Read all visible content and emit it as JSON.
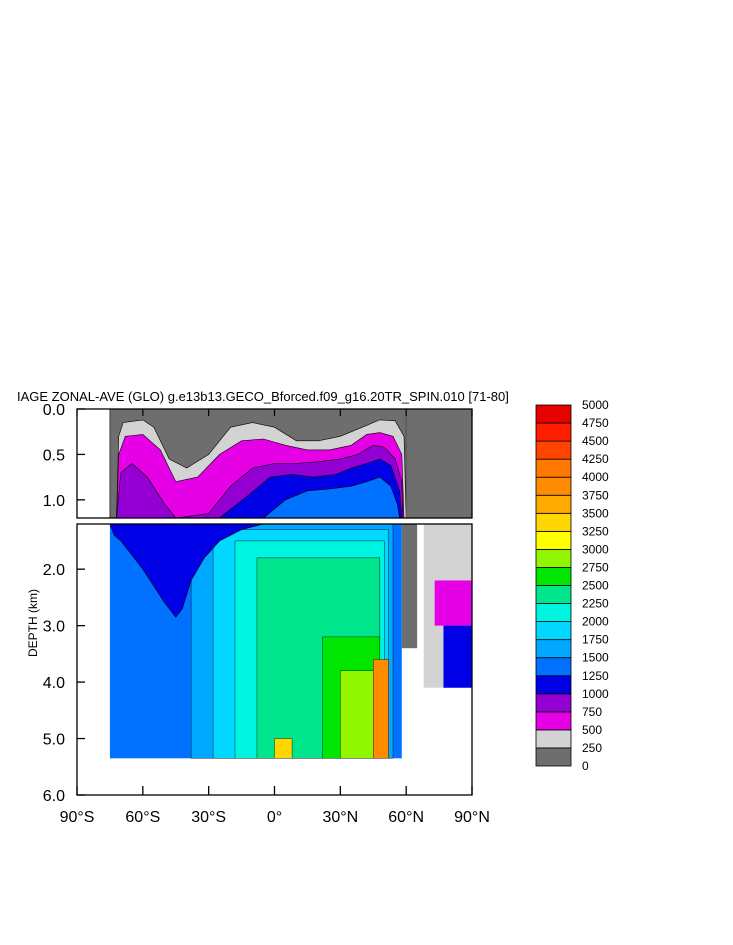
{
  "chart_data": {
    "type": "heatmap",
    "title": "IAGE ZONAL-AVE (GLO) g.e13b13.GECO_Bforced.f09_g16.20TR_SPIN.010 [71-80]",
    "xlabel": "",
    "ylabel": "DEPTH (km)",
    "x_ticks": [
      "90°S",
      "60°S",
      "30°S",
      "0°",
      "30°N",
      "60°N",
      "90°N"
    ],
    "x_tick_values": [
      -90,
      -60,
      -30,
      0,
      30,
      60,
      90
    ],
    "xlim": [
      -90,
      90
    ],
    "upper_panel": {
      "ylim": [
        0,
        1.2
      ],
      "y_ticks": [
        "0.0",
        "0.5",
        "1.0"
      ],
      "y_tick_values": [
        0,
        0.5,
        1.0
      ]
    },
    "lower_panel": {
      "ylim": [
        1.2,
        6.0
      ],
      "y_ticks": [
        "2.0",
        "3.0",
        "4.0",
        "5.0",
        "6.0"
      ],
      "y_tick_values": [
        2,
        3,
        4,
        5,
        6
      ]
    },
    "colorbar": {
      "levels": [
        0,
        250,
        500,
        750,
        1000,
        1250,
        1500,
        1750,
        2000,
        2250,
        2500,
        2750,
        3000,
        3250,
        3500,
        3750,
        4000,
        4250,
        4500,
        4750,
        5000
      ],
      "labels": [
        "0",
        "250",
        "500",
        "750",
        "1000",
        "1250",
        "1500",
        "1750",
        "2000",
        "2250",
        "2500",
        "2750",
        "3000",
        "3250",
        "3500",
        "3750",
        "4000",
        "4250",
        "4500",
        "4750",
        "5000"
      ],
      "colors": [
        "#6e6e6e",
        "#d3d3d3",
        "#e600e6",
        "#9400d3",
        "#0000e6",
        "#0072ff",
        "#00a8ff",
        "#00d8ff",
        "#00f5e1",
        "#00e68c",
        "#00e600",
        "#91f700",
        "#ffff00",
        "#ffd700",
        "#ffaa00",
        "#ff8c00",
        "#ff7800",
        "#ff4400",
        "#ff1e00",
        "#e60000"
      ]
    },
    "zonal_age_sections": [
      {
        "name": "surface_mask",
        "value": 0,
        "points": [
          [
            -75,
            0
          ],
          [
            -75,
            1.2
          ],
          [
            60,
            1.2
          ],
          [
            60,
            0
          ]
        ]
      },
      {
        "value": 250,
        "points": [
          [
            -72,
            1.2
          ],
          [
            -71,
            0.3
          ],
          [
            -69,
            0.15
          ],
          [
            -60,
            0.12
          ],
          [
            -55,
            0.2
          ],
          [
            -48,
            0.55
          ],
          [
            -40,
            0.65
          ],
          [
            -30,
            0.5
          ],
          [
            -20,
            0.2
          ],
          [
            -10,
            0.15
          ],
          [
            0,
            0.2
          ],
          [
            10,
            0.35
          ],
          [
            20,
            0.35
          ],
          [
            30,
            0.3
          ],
          [
            40,
            0.2
          ],
          [
            48,
            0.12
          ],
          [
            55,
            0.13
          ],
          [
            59,
            0.3
          ],
          [
            60,
            1.2
          ]
        ]
      },
      {
        "value": 500,
        "points": [
          [
            -72,
            1.2
          ],
          [
            -71,
            0.5
          ],
          [
            -68,
            0.3
          ],
          [
            -60,
            0.28
          ],
          [
            -52,
            0.45
          ],
          [
            -45,
            0.8
          ],
          [
            -35,
            0.75
          ],
          [
            -25,
            0.5
          ],
          [
            -15,
            0.35
          ],
          [
            -5,
            0.33
          ],
          [
            5,
            0.4
          ],
          [
            15,
            0.45
          ],
          [
            25,
            0.45
          ],
          [
            35,
            0.4
          ],
          [
            42,
            0.28
          ],
          [
            48,
            0.26
          ],
          [
            54,
            0.3
          ],
          [
            58,
            0.5
          ],
          [
            59,
            1.2
          ]
        ]
      },
      {
        "value": 750,
        "points": [
          [
            -72,
            1.2
          ],
          [
            -70,
            0.7
          ],
          [
            -65,
            0.6
          ],
          [
            -58,
            0.75
          ],
          [
            -50,
            1.05
          ],
          [
            -45,
            1.2
          ],
          [
            -30,
            1.15
          ],
          [
            -20,
            0.85
          ],
          [
            -10,
            0.65
          ],
          [
            0,
            0.6
          ],
          [
            10,
            0.6
          ],
          [
            20,
            0.58
          ],
          [
            30,
            0.55
          ],
          [
            38,
            0.5
          ],
          [
            45,
            0.4
          ],
          [
            50,
            0.42
          ],
          [
            55,
            0.55
          ],
          [
            58,
            0.8
          ],
          [
            58.5,
            1.2
          ]
        ]
      },
      {
        "value": 1000,
        "points": [
          [
            -25,
            1.2
          ],
          [
            -12,
            0.95
          ],
          [
            -2,
            0.75
          ],
          [
            8,
            0.72
          ],
          [
            18,
            0.75
          ],
          [
            28,
            0.72
          ],
          [
            35,
            0.65
          ],
          [
            42,
            0.6
          ],
          [
            48,
            0.55
          ],
          [
            53,
            0.62
          ],
          [
            57,
            0.9
          ],
          [
            58,
            1.2
          ]
        ]
      },
      {
        "value": 1250,
        "points": [
          [
            -5,
            1.2
          ],
          [
            5,
            1.0
          ],
          [
            15,
            0.9
          ],
          [
            25,
            0.88
          ],
          [
            35,
            0.85
          ],
          [
            42,
            0.8
          ],
          [
            48,
            0.75
          ],
          [
            53,
            0.85
          ],
          [
            56,
            1.05
          ],
          [
            57,
            1.2
          ]
        ]
      }
    ],
    "deep_sections": [
      {
        "value": 750,
        "points": [
          [
            -75,
            1.2
          ],
          [
            -72,
            1.3
          ],
          [
            -68,
            1.4
          ],
          [
            -60,
            1.5
          ],
          [
            -54,
            1.6
          ],
          [
            -50,
            1.75
          ],
          [
            -46,
            1.85
          ],
          [
            -42,
            1.8
          ],
          [
            -35,
            1.6
          ],
          [
            -25,
            1.4
          ],
          [
            -15,
            1.25
          ],
          [
            -5,
            1.2
          ]
        ]
      },
      {
        "value": 1000,
        "points": [
          [
            -75,
            1.2
          ],
          [
            -73,
            1.4
          ],
          [
            -70,
            1.5
          ],
          [
            -66,
            1.7
          ],
          [
            -60,
            2.0
          ],
          [
            -55,
            2.3
          ],
          [
            -50,
            2.6
          ],
          [
            -45,
            2.85
          ],
          [
            -42,
            2.7
          ],
          [
            -38,
            2.2
          ],
          [
            -32,
            1.8
          ],
          [
            -25,
            1.5
          ],
          [
            -15,
            1.3
          ],
          [
            -5,
            1.2
          ]
        ]
      }
    ]
  }
}
